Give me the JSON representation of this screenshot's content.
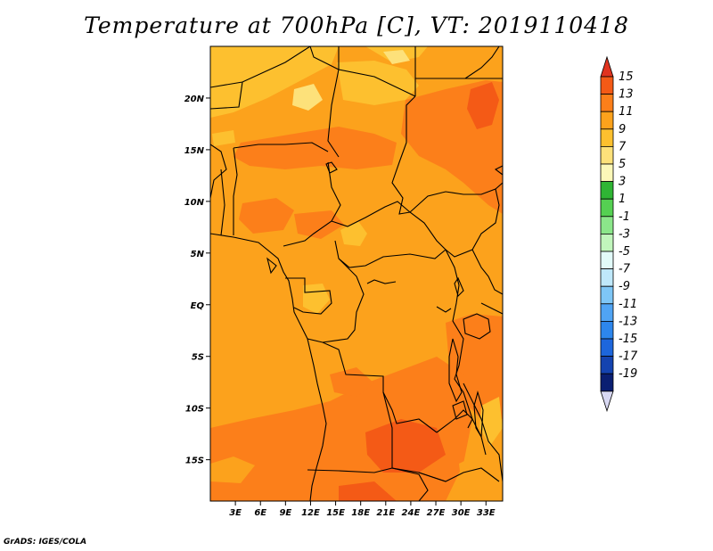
{
  "title": "Temperature at 700hPa [C], VT: 2019110418",
  "credit": "GrADS: IGES/COLA",
  "map": {
    "lon_range": [
      0,
      35
    ],
    "lat_range": [
      -19,
      25
    ],
    "x_ticks": [
      {
        "lon": 3,
        "label": "3E"
      },
      {
        "lon": 6,
        "label": "6E"
      },
      {
        "lon": 9,
        "label": "9E"
      },
      {
        "lon": 12,
        "label": "12E"
      },
      {
        "lon": 15,
        "label": "15E"
      },
      {
        "lon": 18,
        "label": "18E"
      },
      {
        "lon": 21,
        "label": "21E"
      },
      {
        "lon": 24,
        "label": "24E"
      },
      {
        "lon": 27,
        "label": "27E"
      },
      {
        "lon": 30,
        "label": "30E"
      },
      {
        "lon": 33,
        "label": "33E"
      }
    ],
    "y_ticks": [
      {
        "lat": 20,
        "label": "20N"
      },
      {
        "lat": 15,
        "label": "15N"
      },
      {
        "lat": 10,
        "label": "10N"
      },
      {
        "lat": 5,
        "label": "5N"
      },
      {
        "lat": 0,
        "label": "EQ"
      },
      {
        "lat": -5,
        "label": "5S"
      },
      {
        "lat": -10,
        "label": "10S"
      },
      {
        "lat": -15,
        "label": "15S"
      }
    ]
  },
  "colorbar": {
    "labels": [
      "15",
      "13",
      "11",
      "9",
      "7",
      "5",
      "3",
      "1",
      "-1",
      "-3",
      "-5",
      "-7",
      "-9",
      "-11",
      "-13",
      "-15",
      "-17",
      "-19"
    ],
    "colors_top_to_bottom": [
      "#e0331f",
      "#f45a16",
      "#fc7f1a",
      "#fca21c",
      "#fdc02f",
      "#fde17a",
      "#fcf8b8",
      "#2fb534",
      "#55d052",
      "#8be68a",
      "#c1f6bc",
      "#e2fbf9",
      "#bfe8fb",
      "#7ec6f6",
      "#50a4f4",
      "#2d86ec",
      "#1d66dc",
      "#1443b0",
      "#0a1f72",
      "#d8d8f2"
    ],
    "contour_colors": {
      "c7_9": "#fdc02f",
      "c9_11": "#fca21c",
      "c11_13": "#fc7f1a",
      "c13_15": "#f45a16",
      "c15_up": "#e0331f"
    }
  }
}
